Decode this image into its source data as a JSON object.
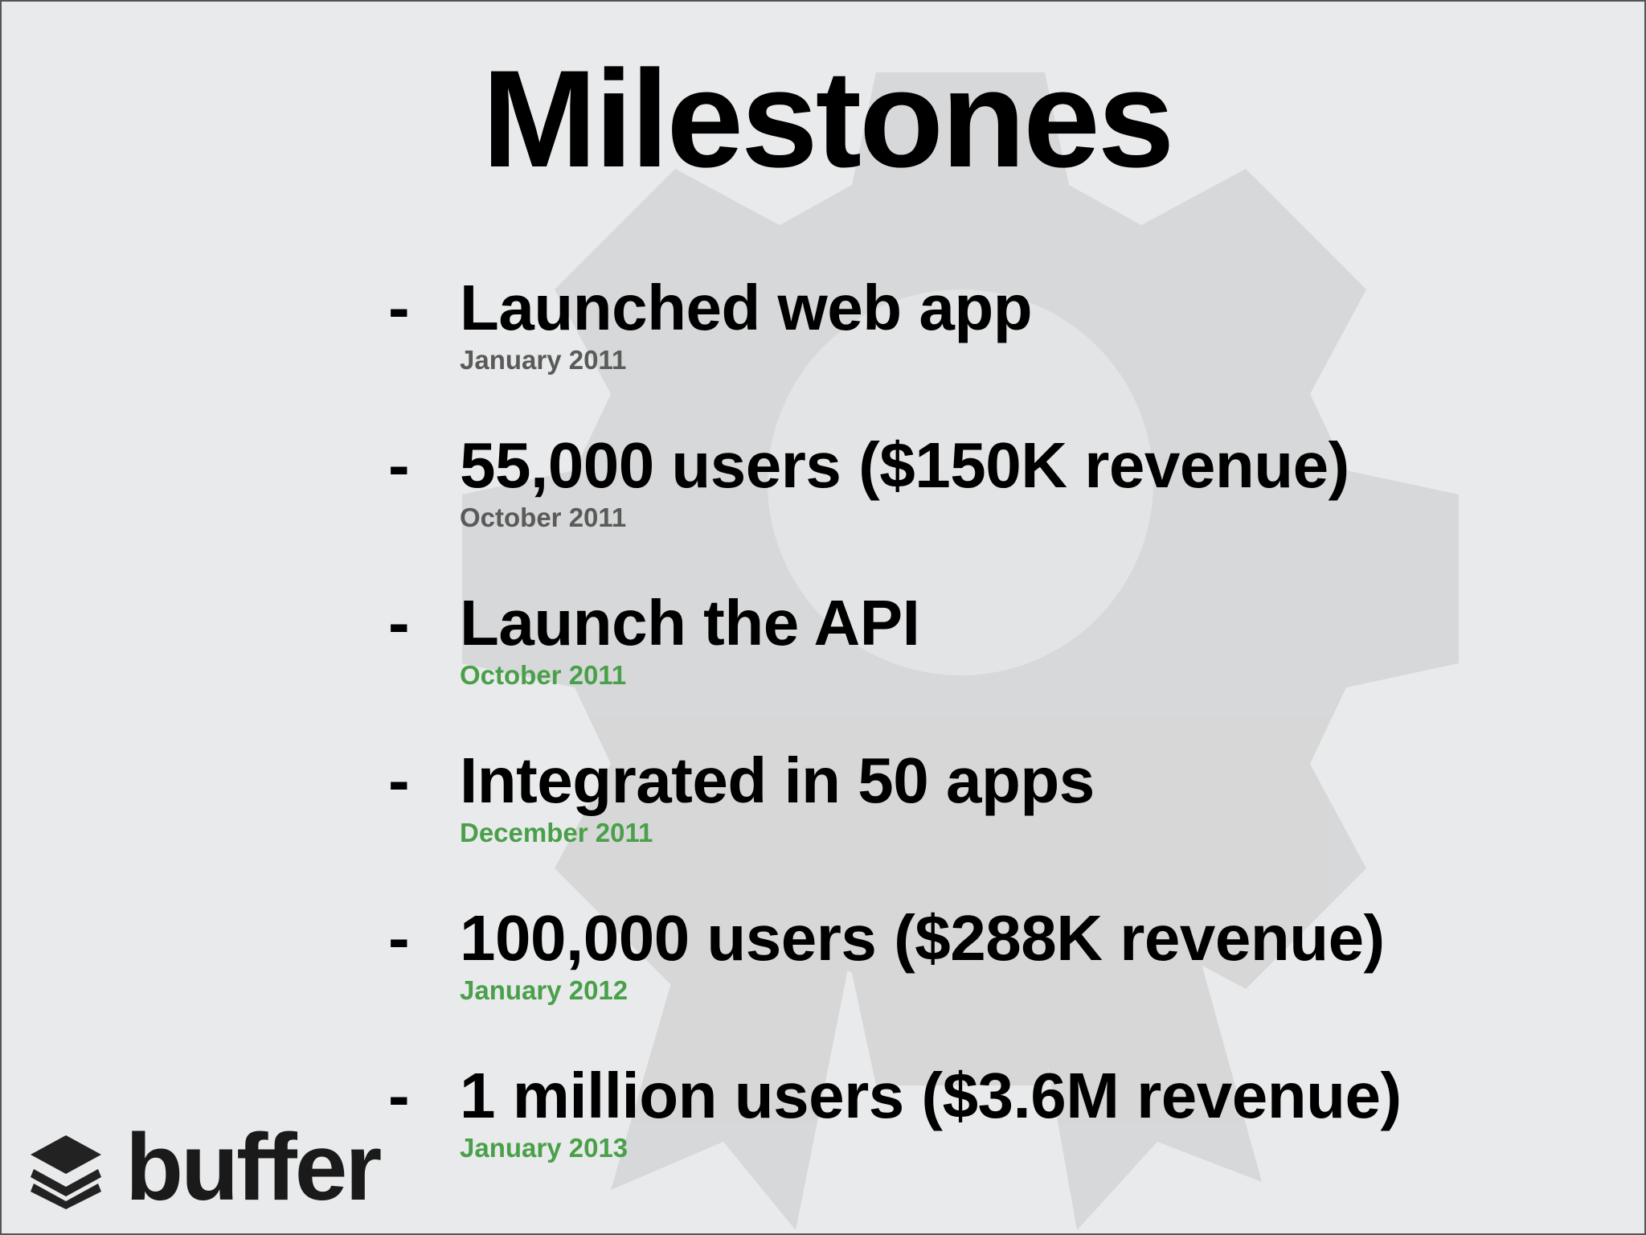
{
  "title": "Milestones",
  "colors": {
    "past_date": "#5a5a5a",
    "highlight_date": "#4aa04a",
    "background": "#e9eaeb"
  },
  "background_icon": "gear-ribbon-icon",
  "items": [
    {
      "bullet": "-",
      "text": "Launched web app",
      "date": "January 2011",
      "highlight": false
    },
    {
      "bullet": "-",
      "text": "55,000 users ($150K revenue)",
      "date": "October 2011",
      "highlight": false
    },
    {
      "bullet": "-",
      "text": "Launch the API",
      "date": "October 2011",
      "highlight": true
    },
    {
      "bullet": "-",
      "text": "Integrated in 50 apps",
      "date": "December 2011",
      "highlight": true
    },
    {
      "bullet": "-",
      "text": "100,000 users ($288K revenue)",
      "date": "January 2012",
      "highlight": true
    },
    {
      "bullet": "-",
      "text": "1 million users ($3.6M revenue)",
      "date": "January 2013",
      "highlight": true
    }
  ],
  "logo": {
    "text": "buffer",
    "icon": "stacked-layers-icon"
  }
}
